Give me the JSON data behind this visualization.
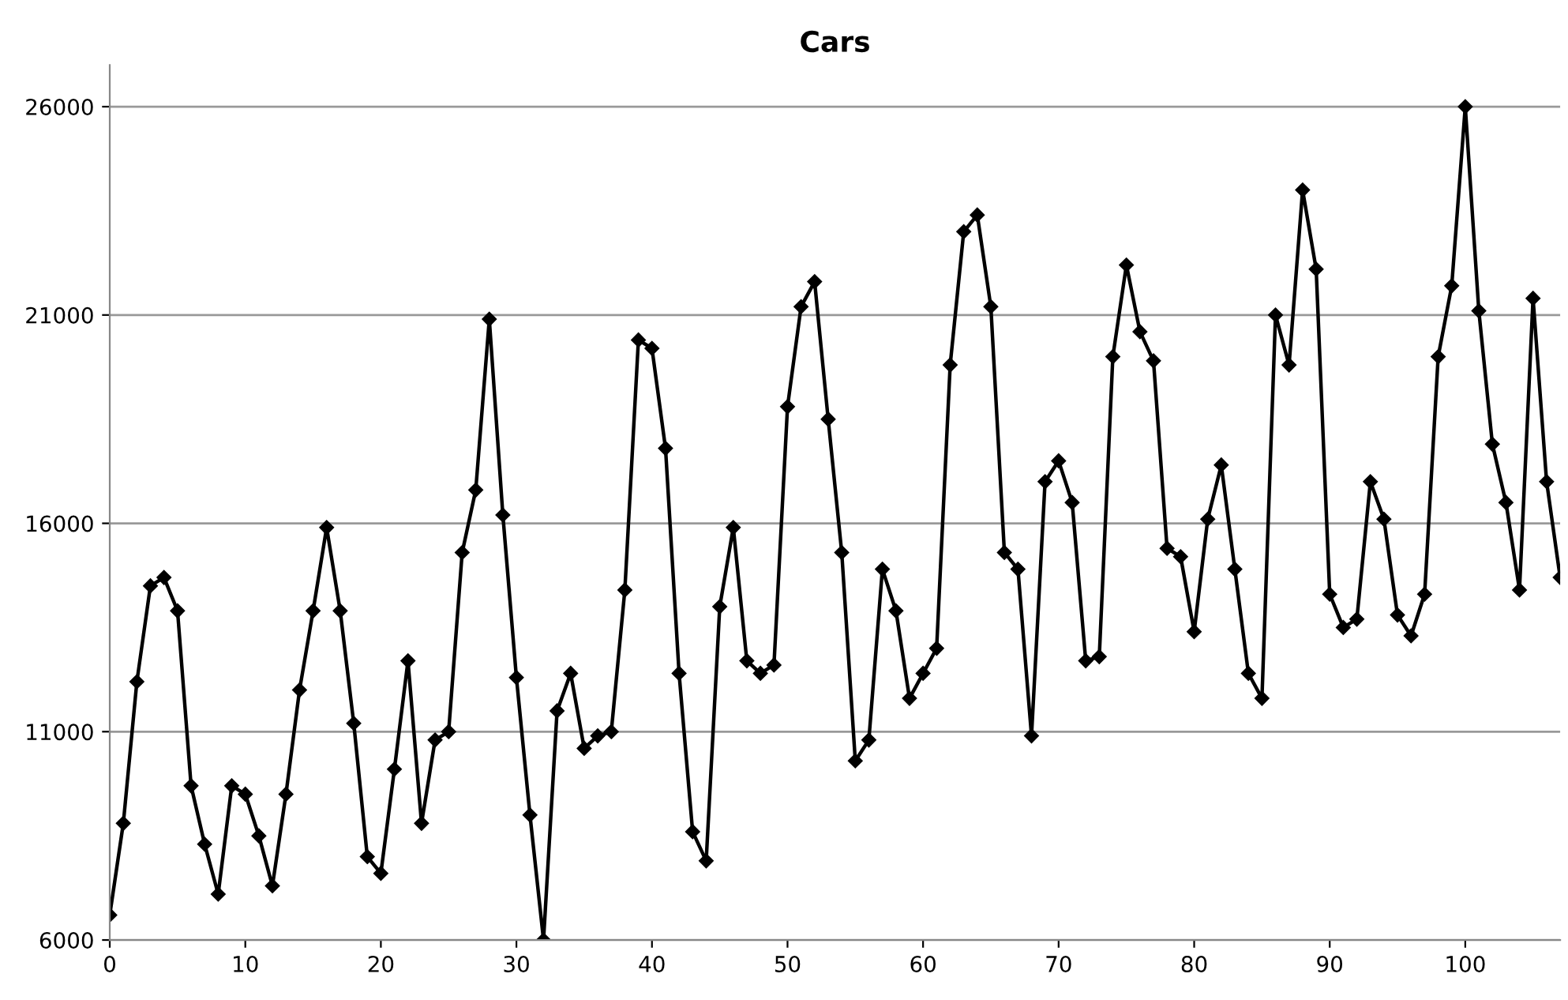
{
  "chart_data": {
    "type": "line",
    "title": "Cars",
    "x": [
      0,
      1,
      2,
      3,
      4,
      5,
      6,
      7,
      8,
      9,
      10,
      11,
      12,
      13,
      14,
      15,
      16,
      17,
      18,
      19,
      20,
      21,
      22,
      23,
      24,
      25,
      26,
      27,
      28,
      29,
      30,
      31,
      32,
      33,
      34,
      35,
      36,
      37,
      38,
      39,
      40,
      41,
      42,
      43,
      44,
      45,
      46,
      47,
      48,
      49,
      50,
      51,
      52,
      53,
      54,
      55,
      56,
      57,
      58,
      59,
      60,
      61,
      62,
      63,
      64,
      65,
      66,
      67,
      68,
      69,
      70,
      71,
      72,
      73,
      74,
      75,
      76,
      77,
      78,
      79,
      80,
      81,
      82,
      83,
      84,
      85,
      86,
      87,
      88,
      89,
      90,
      91,
      92,
      93,
      94,
      95,
      96,
      97,
      98,
      99,
      100,
      101,
      102,
      103,
      104,
      105,
      106,
      107
    ],
    "series": [
      {
        "color": "#000000",
        "values": [
          6600,
          8800,
          12200,
          14500,
          14700,
          13900,
          9700,
          8300,
          7100,
          9700,
          9500,
          8500,
          7300,
          9500,
          12000,
          13900,
          15900,
          13900,
          11200,
          8000,
          7600,
          10100,
          12700,
          8800,
          10800,
          11000,
          15300,
          16800,
          20900,
          16200,
          12300,
          9000,
          6000,
          11500,
          12400,
          10600,
          10900,
          11000,
          14400,
          20400,
          20200,
          17800,
          12400,
          8600,
          7900,
          14000,
          15900,
          12700,
          12400,
          12600,
          18800,
          21200,
          21800,
          18500,
          15300,
          10300,
          10800,
          14900,
          13900,
          11800,
          12400,
          13000,
          19800,
          23000,
          23400,
          21200,
          15300,
          14900,
          10900,
          17000,
          17500,
          16500,
          12700,
          12800,
          20000,
          22200,
          20600,
          19900,
          15400,
          15200,
          13400,
          16100,
          17400,
          14900,
          12400,
          11800,
          21000,
          19800,
          24000,
          22100,
          14300,
          13500,
          13700,
          17000,
          16100,
          13800,
          13300,
          14300,
          20000,
          21700,
          26000,
          21100,
          17900,
          16500,
          14400,
          21400,
          17000,
          14700
        ]
      }
    ],
    "xlim": [
      0,
      107
    ],
    "xticks": [
      0,
      10,
      20,
      30,
      40,
      50,
      60,
      70,
      80,
      90,
      100
    ],
    "ylim": [
      6000,
      27000
    ],
    "yticks": [
      6000,
      11000,
      16000,
      21000,
      26000
    ],
    "grid": "y",
    "marker": "diamond",
    "line_style": "solid"
  }
}
